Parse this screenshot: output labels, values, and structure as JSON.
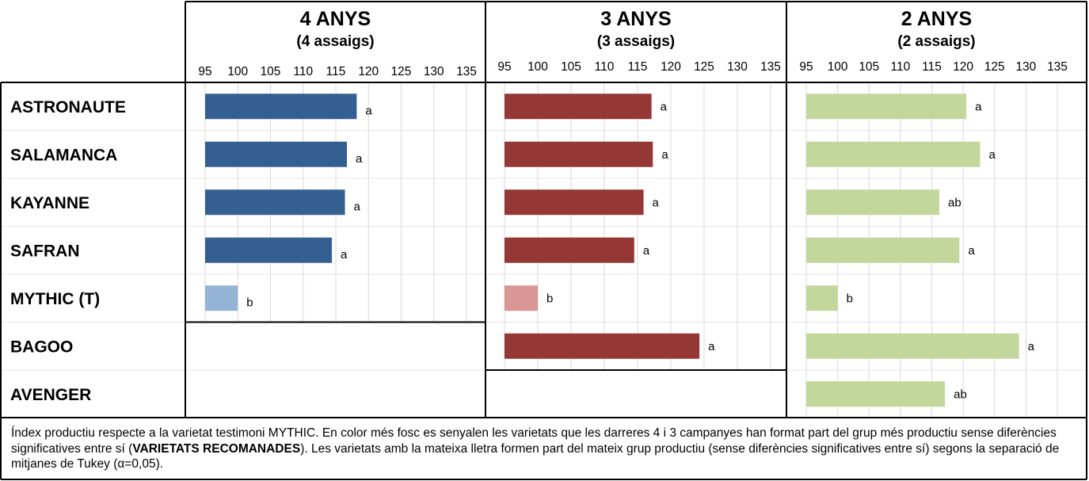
{
  "chart_data": [
    {
      "type": "bar",
      "orientation": "horizontal",
      "title": "4 ANYS",
      "subtitle": "(4 assaigs)",
      "xlim": [
        95,
        135
      ],
      "ticks": [
        95,
        100,
        105,
        110,
        115,
        120,
        125,
        130,
        135
      ],
      "grid": true,
      "colors": {
        "dark": "#365f91",
        "light": "#95b3d7"
      },
      "bars": [
        {
          "category": "ASTRONAUTE",
          "value": 118.2,
          "group": "a",
          "shade": "dark"
        },
        {
          "category": "SALAMANCA",
          "value": 116.7,
          "group": "a",
          "shade": "dark"
        },
        {
          "category": "KAYANNE",
          "value": 116.4,
          "group": "a",
          "shade": "dark"
        },
        {
          "category": "SAFRAN",
          "value": 114.4,
          "group": "a",
          "shade": "dark"
        },
        {
          "category": "MYTHIC (T)",
          "value": 100,
          "group": "b",
          "shade": "light"
        }
      ]
    },
    {
      "type": "bar",
      "orientation": "horizontal",
      "title": "3 ANYS",
      "subtitle": "(3 assaigs)",
      "xlim": [
        95,
        135
      ],
      "ticks": [
        95,
        100,
        105,
        110,
        115,
        120,
        125,
        130,
        135
      ],
      "grid": true,
      "colors": {
        "dark": "#953735",
        "light": "#d99694"
      },
      "bars": [
        {
          "category": "ASTRONAUTE",
          "value": 117.1,
          "group": "a",
          "shade": "dark"
        },
        {
          "category": "SALAMANCA",
          "value": 117.3,
          "group": "a",
          "shade": "dark"
        },
        {
          "category": "KAYANNE",
          "value": 115.9,
          "group": "a",
          "shade": "dark"
        },
        {
          "category": "SAFRAN",
          "value": 114.5,
          "group": "a",
          "shade": "dark"
        },
        {
          "category": "MYTHIC (T)",
          "value": 100,
          "group": "b",
          "shade": "light"
        },
        {
          "category": "BAGOO",
          "value": 124.3,
          "group": "a",
          "shade": "dark"
        }
      ]
    },
    {
      "type": "bar",
      "orientation": "horizontal",
      "title": "2 ANYS",
      "subtitle": "(2 assaigs)",
      "xlim": [
        95,
        135
      ],
      "ticks": [
        95,
        100,
        105,
        110,
        115,
        120,
        125,
        130,
        135
      ],
      "grid": true,
      "colors": {
        "dark": "#c3d69b",
        "light": "#c3d69b"
      },
      "bars": [
        {
          "category": "ASTRONAUTE",
          "value": 120.5,
          "group": "a",
          "shade": "dark"
        },
        {
          "category": "SALAMANCA",
          "value": 122.7,
          "group": "a",
          "shade": "dark"
        },
        {
          "category": "KAYANNE",
          "value": 116.2,
          "group": "ab",
          "shade": "dark"
        },
        {
          "category": "SAFRAN",
          "value": 119.4,
          "group": "a",
          "shade": "dark"
        },
        {
          "category": "MYTHIC (T)",
          "value": 100,
          "group": "b",
          "shade": "dark"
        },
        {
          "category": "BAGOO",
          "value": 128.9,
          "group": "a",
          "shade": "dark"
        },
        {
          "category": "AVENGER",
          "value": 117.1,
          "group": "ab",
          "shade": "dark"
        }
      ]
    }
  ],
  "rows": [
    "ASTRONAUTE",
    "SALAMANCA",
    "KAYANNE",
    "SAFRAN",
    "MYTHIC (T)",
    "BAGOO",
    "AVENGER"
  ],
  "footnote": {
    "part1": "Índex productiu respecte a la varietat testimoni MYTHIC. En color més fosc es senyalen les varietats que les darreres 4 i 3 campanyes han format part del grup més productiu sense diferències significatives entre sí (",
    "bold": "VARIETATS RECOMANADES",
    "part2": "). Les varietats amb la mateixa lletra formen part del mateix grup productiu (sense diferències significatives entre sí) segons la separació de mitjanes de Tukey (α=0,05)."
  }
}
